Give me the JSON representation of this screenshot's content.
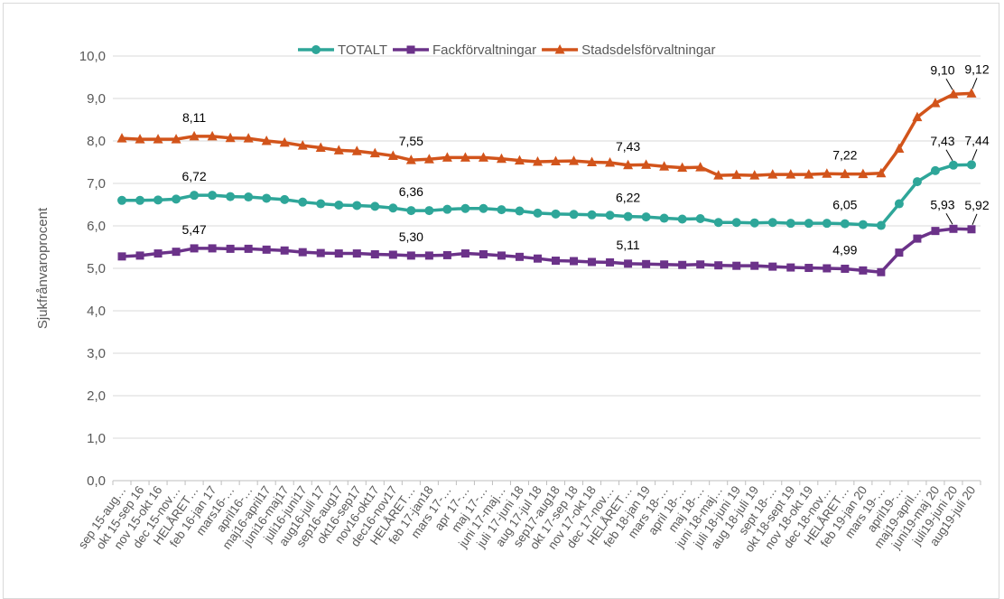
{
  "chart_data": {
    "type": "line",
    "ylabel": "Sjukfrånvaroprocent",
    "xlabel": "",
    "ylim": [
      0,
      10
    ],
    "yticks": [
      "0,0",
      "1,0",
      "2,0",
      "3,0",
      "4,0",
      "5,0",
      "6,0",
      "7,0",
      "8,0",
      "9,0",
      "10,0"
    ],
    "grid": "horizontal",
    "legend_position": "top-center",
    "categories": [
      "sep 15-aug…",
      "okt 15-sep 16",
      "nov 15-okt 16",
      "dec 15-nov…",
      "HELÅRET…",
      "feb 16-jan 17",
      "mars16-…",
      "april16-…",
      "maj16-april17",
      "juni16-maj17",
      "juli16-juni17",
      "aug16-juli 17",
      "sep16-aug17",
      "okt16-sep17",
      "nov16-okt17",
      "dec16-nov17",
      "HELÅRET…",
      "feb 17-jan18",
      "mars 17-…",
      "apr 17-…",
      "maj 17-…",
      "juni 17-maj…",
      "juli 17-juni 18",
      "aug 17-jul 18",
      "sep17-aug18",
      "okt 17-sep 18",
      "nov 17-okt 18",
      "dec 17-nov…",
      "HELÅRET…",
      "feb 18-jan 19",
      "mars 18-…",
      "april 18-…",
      "maj 18-…",
      "juni 18-maj…",
      "juli 18-juni 19",
      "aug 18-juli 19",
      "sept 18-…",
      "okt 18-sept 19",
      "nov 18-okt 19",
      "dec 18-nov…",
      "HELÅRET…",
      "feb 19-jan 20",
      "mars 19-…",
      "april19-…",
      "maj19-april…",
      "juni19-maj 20",
      "juli19-juni 20",
      "aug19-juli 20"
    ],
    "series": [
      {
        "name": "TOTALT",
        "color": "#2ea699",
        "marker": "circle",
        "values": [
          6.6,
          6.6,
          6.61,
          6.63,
          6.72,
          6.72,
          6.69,
          6.68,
          6.65,
          6.62,
          6.56,
          6.52,
          6.49,
          6.48,
          6.46,
          6.42,
          6.36,
          6.36,
          6.39,
          6.41,
          6.41,
          6.38,
          6.35,
          6.3,
          6.28,
          6.27,
          6.26,
          6.25,
          6.22,
          6.21,
          6.18,
          6.16,
          6.17,
          6.08,
          6.08,
          6.07,
          6.08,
          6.06,
          6.06,
          6.06,
          6.05,
          6.03,
          6.01,
          6.52,
          7.04,
          7.3,
          7.43,
          7.44
        ]
      },
      {
        "name": "Fackförvaltningar",
        "color": "#6b3289",
        "marker": "square",
        "values": [
          5.28,
          5.3,
          5.35,
          5.39,
          5.47,
          5.47,
          5.46,
          5.46,
          5.44,
          5.42,
          5.38,
          5.36,
          5.35,
          5.35,
          5.33,
          5.32,
          5.3,
          5.3,
          5.31,
          5.35,
          5.33,
          5.3,
          5.27,
          5.23,
          5.18,
          5.17,
          5.15,
          5.14,
          5.11,
          5.1,
          5.09,
          5.08,
          5.09,
          5.07,
          5.06,
          5.06,
          5.04,
          5.02,
          5.01,
          5.0,
          4.99,
          4.95,
          4.91,
          5.37,
          5.7,
          5.88,
          5.93,
          5.92
        ]
      },
      {
        "name": "Stadsdelsförvaltningar",
        "color": "#d2541b",
        "marker": "triangle",
        "values": [
          8.06,
          8.04,
          8.04,
          8.04,
          8.11,
          8.11,
          8.07,
          8.06,
          8.0,
          7.96,
          7.89,
          7.84,
          7.78,
          7.76,
          7.71,
          7.65,
          7.55,
          7.57,
          7.61,
          7.61,
          7.61,
          7.58,
          7.54,
          7.51,
          7.52,
          7.53,
          7.5,
          7.49,
          7.43,
          7.44,
          7.4,
          7.37,
          7.38,
          7.19,
          7.2,
          7.19,
          7.21,
          7.21,
          7.21,
          7.23,
          7.22,
          7.22,
          7.24,
          7.82,
          8.56,
          8.89,
          9.1,
          9.12
        ]
      }
    ],
    "data_labels": [
      {
        "series": 2,
        "index": 4,
        "text": "8,11"
      },
      {
        "series": 2,
        "index": 16,
        "text": "7,55"
      },
      {
        "series": 2,
        "index": 28,
        "text": "7,43"
      },
      {
        "series": 2,
        "index": 40,
        "text": "7,22"
      },
      {
        "series": 2,
        "index": 46,
        "text": "9,10"
      },
      {
        "series": 2,
        "index": 47,
        "text": "9,12"
      },
      {
        "series": 0,
        "index": 4,
        "text": "6,72"
      },
      {
        "series": 0,
        "index": 16,
        "text": "6,36"
      },
      {
        "series": 0,
        "index": 28,
        "text": "6,22"
      },
      {
        "series": 0,
        "index": 40,
        "text": "6,05"
      },
      {
        "series": 0,
        "index": 46,
        "text": "7,43"
      },
      {
        "series": 0,
        "index": 47,
        "text": "7,44"
      },
      {
        "series": 1,
        "index": 4,
        "text": "5,47"
      },
      {
        "series": 1,
        "index": 16,
        "text": "5,30"
      },
      {
        "series": 1,
        "index": 28,
        "text": "5,11"
      },
      {
        "series": 1,
        "index": 40,
        "text": "4,99"
      },
      {
        "series": 1,
        "index": 46,
        "text": "5,93"
      },
      {
        "series": 1,
        "index": 47,
        "text": "5,92"
      }
    ]
  }
}
